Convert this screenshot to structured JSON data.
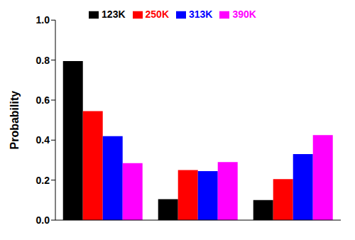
{
  "chart_data": {
    "type": "bar",
    "y_label": "Probability",
    "categories": [
      null,
      null,
      null
    ],
    "series": [
      {
        "name": "123K",
        "color": "#000000",
        "values": [
          0.795,
          0.105,
          0.1
        ]
      },
      {
        "name": "250K",
        "color": "#ff0000",
        "values": [
          0.545,
          0.25,
          0.205
        ]
      },
      {
        "name": "313K",
        "color": "#0000ff",
        "values": [
          0.42,
          0.245,
          0.33
        ]
      },
      {
        "name": "390K",
        "color": "#ff00ff",
        "values": [
          0.285,
          0.29,
          0.425
        ]
      }
    ],
    "ylim": [
      0,
      1
    ],
    "yticks": [
      {
        "value": 0,
        "label": "0.0"
      },
      {
        "value": 0.2,
        "label": "0.2"
      },
      {
        "value": 0.4,
        "label": "0.4"
      },
      {
        "value": 0.6,
        "label": "0.6"
      },
      {
        "value": 0.8,
        "label": "0.8"
      },
      {
        "value": 1,
        "label": "1.0"
      }
    ],
    "legend": "top",
    "tick_labels": "y",
    "grid": false
  }
}
